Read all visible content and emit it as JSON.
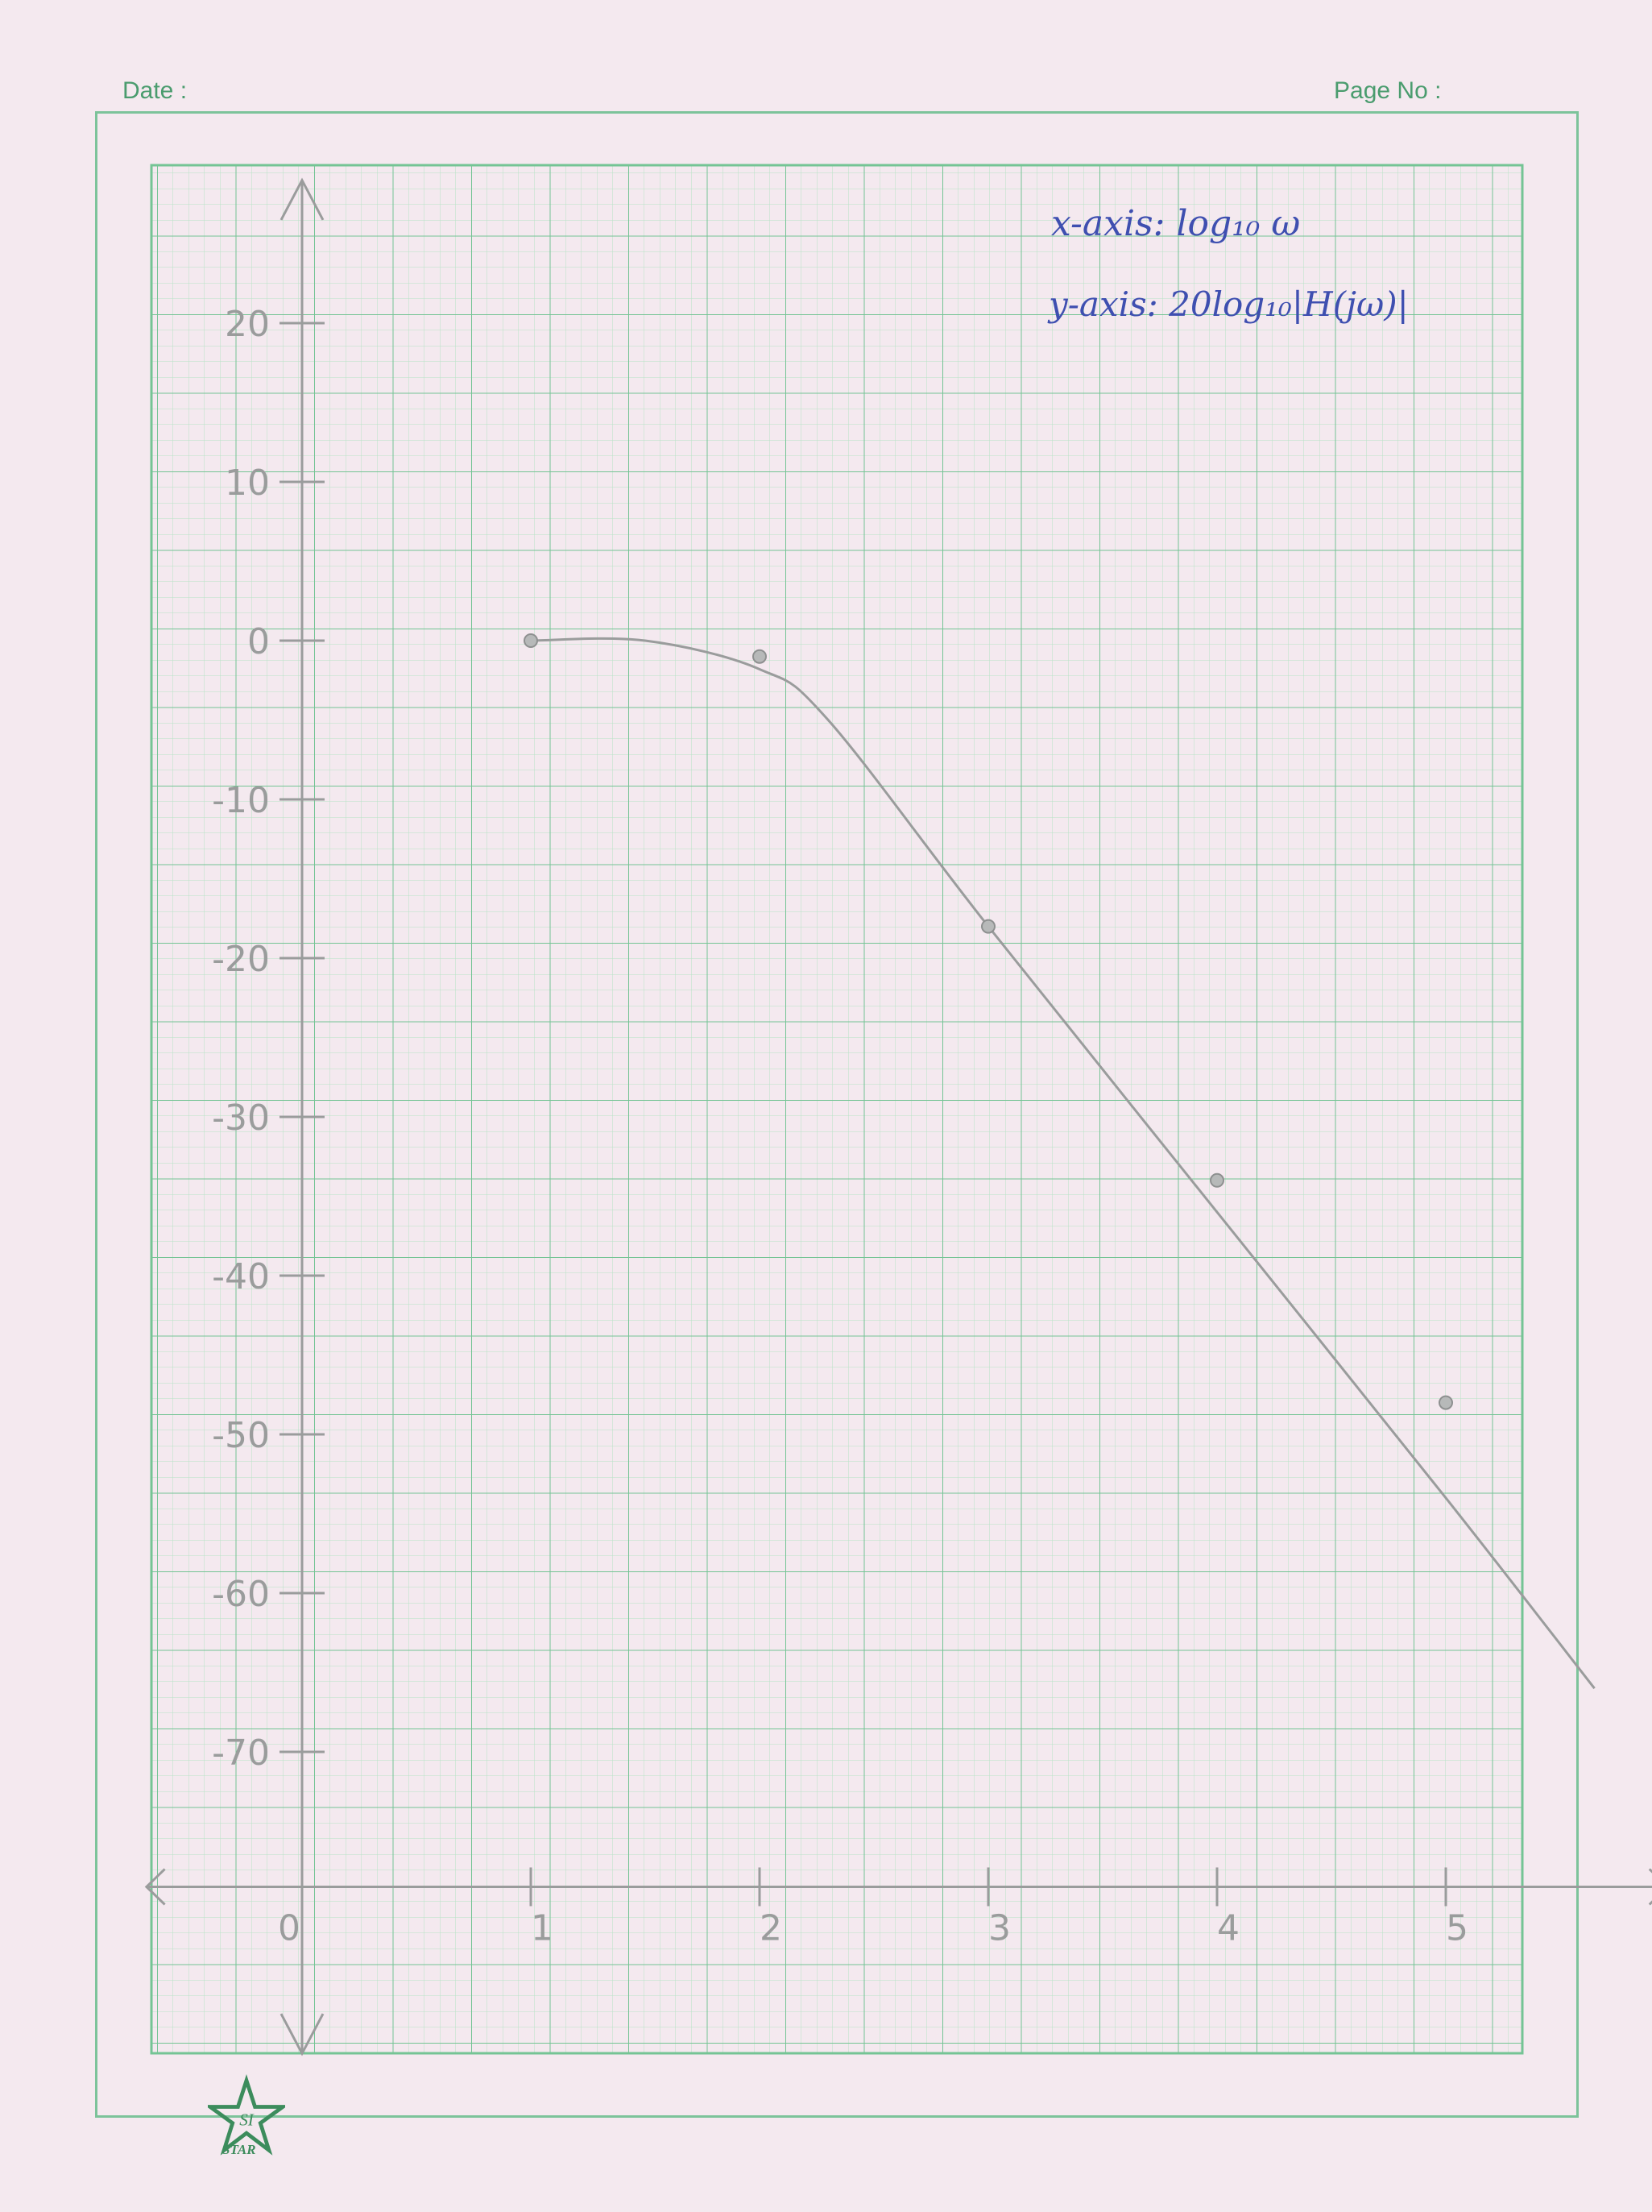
{
  "header": {
    "date_label": "Date :",
    "page_no_label": "Page No :"
  },
  "annotations": {
    "x_axis_note": "x-axis: log₁₀ ω",
    "y_axis_note": "y-axis: 20log₁₀|H(jω)|"
  },
  "logo": {
    "initials": "SI",
    "brand": "STAR"
  },
  "colors": {
    "paper": "#f4e9ef",
    "grid_major": "#6fbf8f",
    "grid_minor": "#a9dcbc",
    "pencil": "#9a9c9c",
    "ink": "#3e4fb0"
  },
  "chart_data": {
    "type": "line",
    "title": "",
    "xlabel": "log₁₀ ω",
    "ylabel": "20log₁₀|H(jω)|",
    "xlim": [
      -0.7,
      5.3
    ],
    "ylim": [
      -80,
      30
    ],
    "x_ticks": [
      "0",
      "1",
      "2",
      "3",
      "4",
      "5"
    ],
    "y_ticks": [
      "20",
      "10",
      "0",
      "-10",
      "-20",
      "-30",
      "-40",
      "-50",
      "-60",
      "-70"
    ],
    "x_tick_values": [
      0,
      1,
      2,
      3,
      4,
      5
    ],
    "y_tick_values": [
      20,
      10,
      0,
      -10,
      -20,
      -30,
      -40,
      -50,
      -60,
      -70
    ],
    "grid": true,
    "series": [
      {
        "kind": "points",
        "x": [
          1,
          2,
          3,
          4,
          5
        ],
        "y": [
          0,
          -1,
          -18,
          -34,
          -48
        ]
      },
      {
        "kind": "curve",
        "x": [
          1,
          1.5,
          2,
          2.3,
          3,
          4,
          5,
          5.65
        ],
        "y": [
          0,
          0,
          -1.8,
          -5,
          -18,
          -36,
          -54,
          -66
        ]
      }
    ]
  }
}
